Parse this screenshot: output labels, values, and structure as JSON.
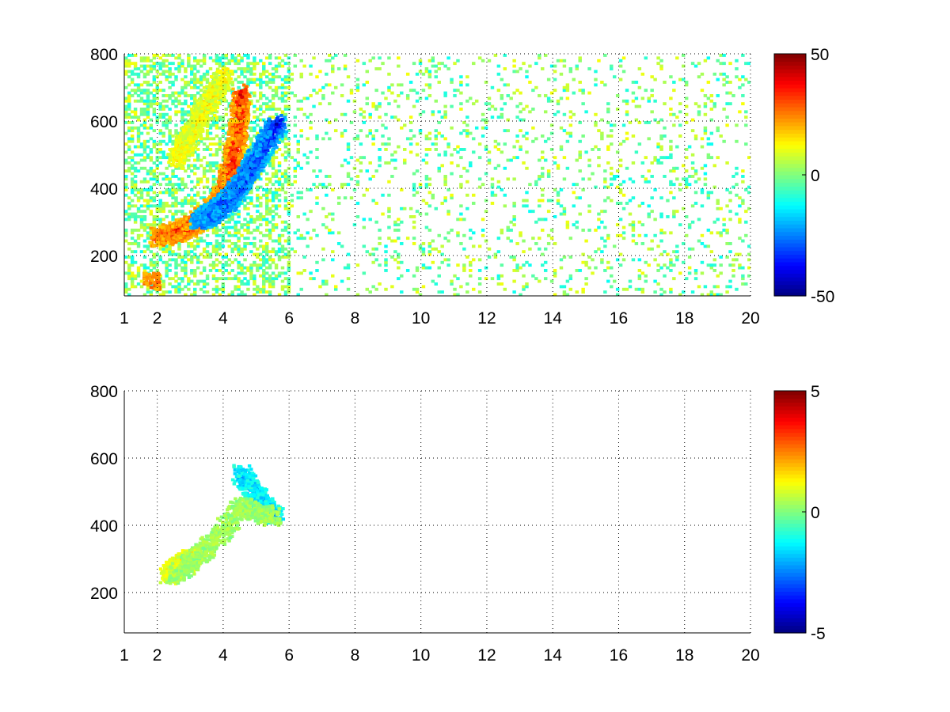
{
  "chart_data": [
    {
      "type": "heatmap",
      "title": "",
      "xlabel": "",
      "ylabel": "",
      "xlim": [
        1,
        20
      ],
      "ylim": [
        80,
        800
      ],
      "x_ticks": [
        1,
        2,
        4,
        6,
        8,
        10,
        12,
        14,
        16,
        18,
        20
      ],
      "x_tick_labels": [
        "1",
        "2",
        "4",
        "6",
        "8",
        "10",
        "12",
        "14",
        "16",
        "18",
        "20"
      ],
      "y_ticks": [
        200,
        400,
        600,
        800
      ],
      "y_tick_labels": [
        "200",
        "400",
        "600",
        "800"
      ],
      "grid": true,
      "grid_style": "dotted",
      "colormap": "jet",
      "colorbar": {
        "clim": [
          -50,
          50
        ],
        "ticks": [
          -50,
          0,
          50
        ],
        "tick_labels": [
          "-50",
          "0",
          "50"
        ],
        "placement": "right"
      },
      "features": [
        {
          "description": "positive ridge",
          "x": [
            2.0,
            2.5,
            3.0,
            3.5,
            3.9,
            4.2,
            4.4,
            4.5
          ],
          "y": [
            250,
            265,
            285,
            320,
            370,
            450,
            560,
            680
          ],
          "value": 45
        },
        {
          "description": "negative ridge",
          "x": [
            3.2,
            3.6,
            4.0,
            4.4,
            4.8,
            5.2,
            5.6
          ],
          "y": [
            300,
            320,
            350,
            395,
            455,
            520,
            590
          ],
          "value": -45
        },
        {
          "description": "positive patch",
          "x": [
            1.8
          ],
          "y": [
            120
          ],
          "value": 30
        },
        {
          "description": "upper positive band",
          "x": [
            2.5,
            3.0,
            3.5,
            4.0
          ],
          "y": [
            480,
            560,
            650,
            730
          ],
          "value": 18
        }
      ],
      "background_noise_range": [
        -12,
        12
      ]
    },
    {
      "type": "heatmap",
      "title": "",
      "xlabel": "",
      "ylabel": "",
      "xlim": [
        1,
        20
      ],
      "ylim": [
        80,
        800
      ],
      "x_ticks": [
        1,
        2,
        4,
        6,
        8,
        10,
        12,
        14,
        16,
        18,
        20
      ],
      "x_tick_labels": [
        "1",
        "2",
        "4",
        "6",
        "8",
        "10",
        "12",
        "14",
        "16",
        "18",
        "20"
      ],
      "y_ticks": [
        200,
        400,
        600,
        800
      ],
      "y_tick_labels": [
        "200",
        "400",
        "600",
        "800"
      ],
      "grid": true,
      "grid_style": "dotted",
      "colormap": "jet",
      "colorbar": {
        "clim": [
          -5,
          5
        ],
        "ticks": [
          -5,
          0,
          5
        ],
        "tick_labels": [
          "-5",
          "0",
          "5"
        ],
        "placement": "right"
      },
      "features": [
        {
          "description": "positive patch",
          "x": [
            2.3,
            2.7,
            3.0
          ],
          "y": [
            250,
            280,
            300
          ],
          "value": 2
        },
        {
          "description": "negative cluster",
          "x": [
            4.5,
            5.0,
            5.5
          ],
          "y": [
            550,
            480,
            420
          ],
          "value": -2.5
        },
        {
          "description": "main cluster",
          "x": [
            2.5,
            3.5,
            4.5,
            5.5
          ],
          "y": [
            250,
            330,
            450,
            420
          ],
          "value": 0.5
        }
      ],
      "background_noise_range": [
        -5,
        5
      ]
    }
  ]
}
